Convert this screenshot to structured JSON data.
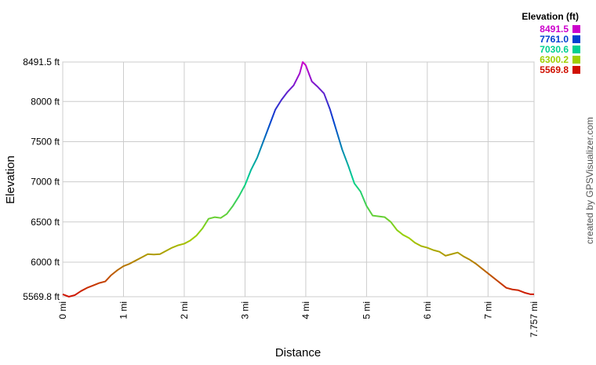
{
  "chart_data": {
    "type": "line",
    "x_label": "Distance",
    "y_label": "Elevation",
    "credit": "created by GPSVisualizer.com",
    "legend_title": "Elevation (ft)",
    "color_scale": [
      {
        "value": 8491.5,
        "label": "8491.5",
        "color": "#cc00cc"
      },
      {
        "value": 7761.0,
        "label": "7761.0",
        "color": "#0040d0"
      },
      {
        "value": 7030.6,
        "label": "7030.6",
        "color": "#00d090"
      },
      {
        "value": 6300.2,
        "label": "6300.2",
        "color": "#a0d000"
      },
      {
        "value": 5569.8,
        "label": "5569.8",
        "color": "#d01000"
      }
    ],
    "xlim": [
      0,
      7.757
    ],
    "ylim": [
      5569.8,
      8491.5
    ],
    "xticks": [
      {
        "value": 0,
        "label": "0 mi"
      },
      {
        "value": 1,
        "label": "1 mi"
      },
      {
        "value": 2,
        "label": "2 mi"
      },
      {
        "value": 3,
        "label": "3 mi"
      },
      {
        "value": 4,
        "label": "4 mi"
      },
      {
        "value": 5,
        "label": "5 mi"
      },
      {
        "value": 6,
        "label": "6 mi"
      },
      {
        "value": 7,
        "label": "7 mi"
      },
      {
        "value": 7.757,
        "label": "7.757 mi"
      }
    ],
    "yticks": [
      {
        "value": 5569.8,
        "label": "5569.8 ft"
      },
      {
        "value": 6000,
        "label": "6000 ft"
      },
      {
        "value": 6500,
        "label": "6500 ft"
      },
      {
        "value": 7000,
        "label": "7000 ft"
      },
      {
        "value": 7500,
        "label": "7500 ft"
      },
      {
        "value": 8000,
        "label": "8000 ft"
      },
      {
        "value": 8491.5,
        "label": "8491.5 ft"
      }
    ],
    "grid": true,
    "series": [
      {
        "x": [
          0,
          0.1,
          0.2,
          0.3,
          0.4,
          0.5,
          0.6,
          0.7,
          0.8,
          0.9,
          1.0,
          1.1,
          1.2,
          1.3,
          1.4,
          1.5,
          1.6,
          1.7,
          1.8,
          1.9,
          2.0,
          2.1,
          2.2,
          2.3,
          2.4,
          2.5,
          2.6,
          2.7,
          2.8,
          2.9,
          3.0,
          3.1,
          3.2,
          3.3,
          3.4,
          3.5,
          3.6,
          3.7,
          3.8,
          3.9,
          3.95,
          4.0,
          4.1,
          4.2,
          4.3,
          4.4,
          4.5,
          4.6,
          4.7,
          4.8,
          4.9,
          5.0,
          5.1,
          5.2,
          5.3,
          5.4,
          5.5,
          5.6,
          5.7,
          5.8,
          5.9,
          6.0,
          6.1,
          6.2,
          6.3,
          6.4,
          6.5,
          6.6,
          6.7,
          6.8,
          6.9,
          7.0,
          7.1,
          7.2,
          7.3,
          7.4,
          7.5,
          7.6,
          7.7,
          7.757
        ],
        "values": [
          5600,
          5570,
          5590,
          5640,
          5680,
          5710,
          5740,
          5760,
          5840,
          5900,
          5950,
          5980,
          6020,
          6060,
          6100,
          6095,
          6100,
          6140,
          6180,
          6210,
          6230,
          6270,
          6330,
          6420,
          6540,
          6560,
          6550,
          6600,
          6700,
          6820,
          6960,
          7150,
          7300,
          7500,
          7700,
          7900,
          8020,
          8120,
          8200,
          8350,
          8491.5,
          8450,
          8250,
          8180,
          8100,
          7900,
          7650,
          7400,
          7200,
          6980,
          6880,
          6700,
          6580,
          6570,
          6560,
          6500,
          6400,
          6340,
          6300,
          6240,
          6200,
          6180,
          6150,
          6130,
          6080,
          6100,
          6120,
          6070,
          6030,
          5980,
          5920,
          5860,
          5800,
          5740,
          5680,
          5660,
          5650,
          5620,
          5600,
          5600
        ]
      }
    ]
  }
}
